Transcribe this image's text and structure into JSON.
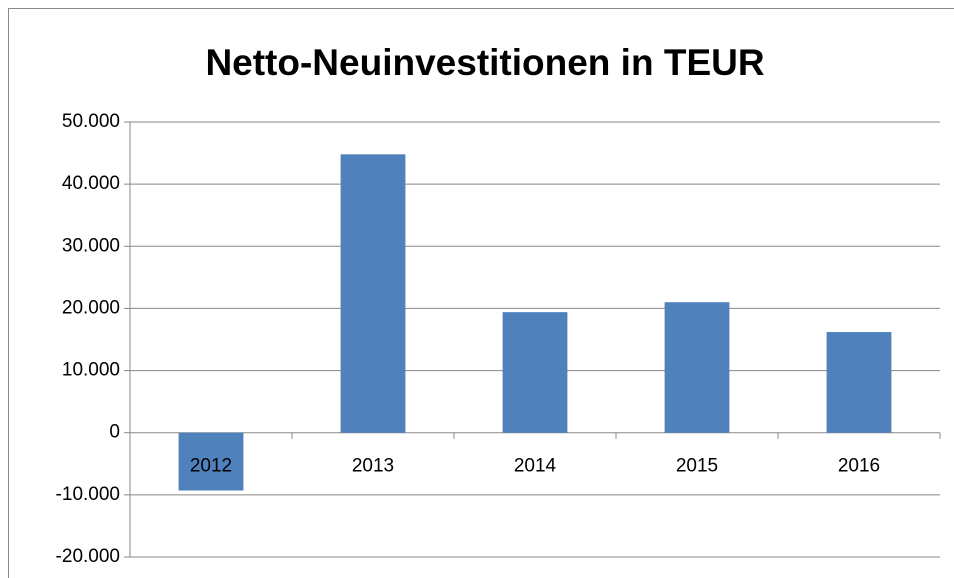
{
  "chart_data": {
    "type": "bar",
    "title": "Netto-Neuinvestitionen in TEUR",
    "categories": [
      "2012",
      "2013",
      "2014",
      "2015",
      "2016"
    ],
    "values": [
      -9300,
      44800,
      19400,
      21000,
      16200
    ],
    "color": "#4f81bd",
    "ylim": [
      -20000,
      50000
    ],
    "yticks": [
      {
        "value": -20000,
        "label": "-20.000"
      },
      {
        "value": -10000,
        "label": "-10.000"
      },
      0,
      {
        "value": 10000,
        "label": "10.000"
      },
      {
        "value": 20000,
        "label": "20.000"
      },
      {
        "value": 30000,
        "label": "30.000"
      },
      {
        "value": 40000,
        "label": "40.000"
      },
      {
        "value": 50000,
        "label": "50.000"
      }
    ],
    "grid": true
  }
}
